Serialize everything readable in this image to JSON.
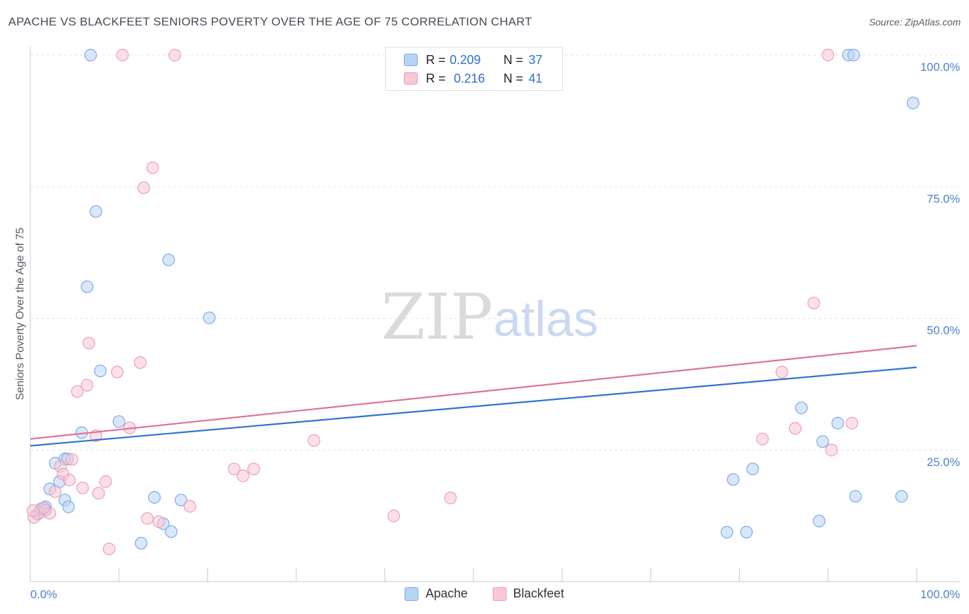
{
  "chart_data": {
    "type": "scatter",
    "title": "APACHE VS BLACKFEET SENIORS POVERTY OVER THE AGE OF 75 CORRELATION CHART",
    "source": "Source: ZipAtlas.com",
    "xlabel": "",
    "ylabel": "Seniors Poverty Over the Age of 75",
    "xlim": [
      0,
      100
    ],
    "ylim": [
      0,
      100
    ],
    "x_tick_labels": [
      "0.0%",
      "100.0%"
    ],
    "y_ticks": [
      25,
      50,
      75,
      100
    ],
    "y_tick_labels": [
      "25.0%",
      "50.0%",
      "75.0%",
      "100.0%"
    ],
    "watermark": {
      "zip": "ZIP",
      "atlas": "atlas"
    },
    "legend_stats": [
      {
        "series": "Apache",
        "r_label": "R =",
        "r": "0.209",
        "n_label": "N =",
        "n": "37"
      },
      {
        "series": "Blackfeet",
        "r_label": "R =",
        "r": "0.216",
        "n_label": "N =",
        "n": "41"
      }
    ],
    "series": [
      {
        "name": "Apache",
        "color": "#7aaae8",
        "fill": "#b9d3f5",
        "line_color": "#2e72d2",
        "trend": {
          "x": [
            0,
            100
          ],
          "y": [
            25.8,
            40.7
          ]
        },
        "points": [
          [
            6.8,
            100
          ],
          [
            92.3,
            100
          ],
          [
            92.9,
            100
          ],
          [
            99.6,
            90.9
          ],
          [
            7.4,
            70.3
          ],
          [
            15.6,
            61.1
          ],
          [
            6.4,
            56
          ],
          [
            20.2,
            50.1
          ],
          [
            7.9,
            40
          ],
          [
            10,
            30.4
          ],
          [
            5.8,
            28.3
          ],
          [
            0.8,
            12.8
          ],
          [
            1.7,
            14.2
          ],
          [
            2.8,
            22.5
          ],
          [
            2.2,
            17.6
          ],
          [
            3.3,
            19
          ],
          [
            3.9,
            23.3
          ],
          [
            4.2,
            23.3
          ],
          [
            1.2,
            13.8
          ],
          [
            3.9,
            15.5
          ],
          [
            4.3,
            14.2
          ],
          [
            1.7,
            13.6
          ],
          [
            14,
            16
          ],
          [
            15,
            11
          ],
          [
            15.9,
            9.5
          ],
          [
            17,
            15.5
          ],
          [
            12.5,
            7.3
          ],
          [
            78.6,
            9.4
          ],
          [
            79.3,
            19.4
          ],
          [
            80.8,
            9.4
          ],
          [
            81.5,
            21.4
          ],
          [
            87,
            33
          ],
          [
            89.4,
            26.6
          ],
          [
            89,
            11.5
          ],
          [
            91.1,
            30.1
          ],
          [
            93.1,
            16.2
          ],
          [
            98.3,
            16.2
          ]
        ]
      },
      {
        "name": "Blackfeet",
        "color": "#ef9bb6",
        "fill": "#f8c7d6",
        "line_color": "#e07098",
        "trend": {
          "x": [
            0,
            100
          ],
          "y": [
            27.1,
            44.8
          ]
        },
        "points": [
          [
            10.4,
            100
          ],
          [
            16.3,
            100
          ],
          [
            90,
            100
          ],
          [
            13.8,
            78.6
          ],
          [
            12.8,
            74.8
          ],
          [
            88.4,
            52.9
          ],
          [
            6.6,
            45.3
          ],
          [
            12.4,
            41.6
          ],
          [
            9.8,
            39.8
          ],
          [
            84.8,
            39.8
          ],
          [
            6.4,
            37.3
          ],
          [
            5.3,
            36.1
          ],
          [
            11.2,
            29.2
          ],
          [
            7.4,
            27.7
          ],
          [
            32,
            26.8
          ],
          [
            82.6,
            27.1
          ],
          [
            86.3,
            29.1
          ],
          [
            90.4,
            25
          ],
          [
            92.7,
            30.1
          ],
          [
            3.4,
            21.9
          ],
          [
            3.7,
            20.4
          ],
          [
            4.4,
            19.3
          ],
          [
            8.5,
            19
          ],
          [
            4.7,
            23.2
          ],
          [
            23,
            21.4
          ],
          [
            24,
            20.1
          ],
          [
            25.2,
            21.4
          ],
          [
            2.8,
            17.1
          ],
          [
            5.9,
            17.8
          ],
          [
            7.7,
            16.8
          ],
          [
            1,
            13
          ],
          [
            0.4,
            12.2
          ],
          [
            2.2,
            13
          ],
          [
            1.5,
            14
          ],
          [
            13.2,
            12
          ],
          [
            14.5,
            11.4
          ],
          [
            18,
            14.3
          ],
          [
            41,
            12.5
          ],
          [
            47.4,
            15.9
          ],
          [
            8.9,
            6.2
          ],
          [
            0.3,
            13.5
          ]
        ]
      }
    ]
  }
}
